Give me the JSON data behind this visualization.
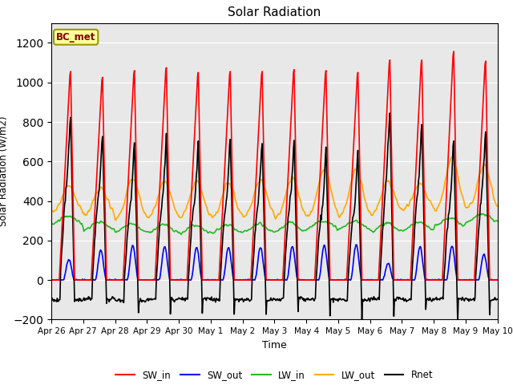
{
  "title": "Solar Radiation",
  "xlabel": "Time",
  "ylabel": "Solar Radiation (W/m2)",
  "ylim": [
    -200,
    1300
  ],
  "yticks": [
    -200,
    0,
    200,
    400,
    600,
    800,
    1000,
    1200
  ],
  "x_tick_labels": [
    "Apr 26",
    "Apr 27",
    "Apr 28",
    "Apr 29",
    "Apr 30",
    "May 1",
    "May 2",
    "May 3",
    "May 4",
    "May 5",
    "May 6",
    "May 7",
    "May 8",
    "May 9",
    "May 10"
  ],
  "legend_entries": [
    {
      "label": "SW_in",
      "color": "#ff0000"
    },
    {
      "label": "SW_out",
      "color": "#0000ff"
    },
    {
      "label": "LW_in",
      "color": "#22bb22"
    },
    {
      "label": "LW_out",
      "color": "#ffaa00"
    },
    {
      "label": "Rnet",
      "color": "#000000"
    }
  ],
  "annotation_text": "BC_met",
  "annotation_box_color": "#ffff99",
  "annotation_box_edge": "#999900",
  "annotation_text_color": "#880000",
  "n_days": 14,
  "pts_per_day": 48,
  "sw_in_peaks": [
    1090,
    1060,
    1095,
    1110,
    1085,
    1090,
    1090,
    1100,
    1095,
    1085,
    1150,
    1150,
    1195,
    1145
  ],
  "sw_out_peaks": [
    105,
    150,
    175,
    170,
    165,
    165,
    165,
    170,
    175,
    180,
    85,
    170,
    175,
    130
  ],
  "lw_in_base": [
    305,
    275,
    265,
    260,
    258,
    258,
    262,
    268,
    282,
    278,
    268,
    272,
    295,
    315
  ],
  "lw_out_peaks": [
    480,
    465,
    510,
    505,
    500,
    490,
    510,
    520,
    565,
    560,
    500,
    490,
    620,
    580
  ],
  "lw_out_night": [
    340,
    325,
    305,
    308,
    312,
    308,
    315,
    305,
    315,
    315,
    330,
    355,
    345,
    355
  ],
  "rnet_night": [
    -100,
    -95,
    -105,
    -100,
    -95,
    -100,
    -100,
    -95,
    -100,
    -100,
    -95,
    -100,
    -95,
    -100
  ]
}
